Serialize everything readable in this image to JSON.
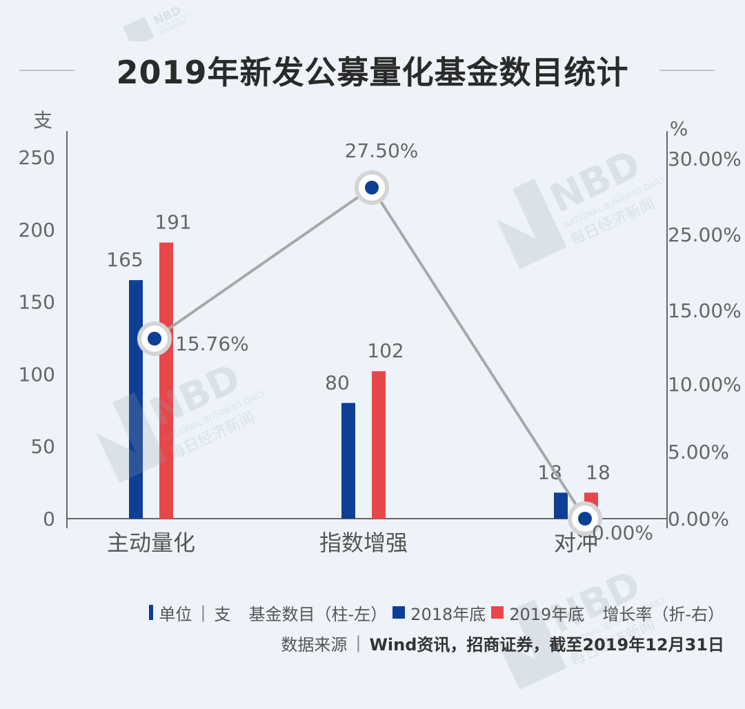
{
  "title": "2019年新发公募量化基金数目统计",
  "chart_data": {
    "type": "bar",
    "title": "2019年新发公募量化基金数目统计",
    "categories": [
      "主动量化",
      "指数增强",
      "对冲"
    ],
    "series": [
      {
        "name": "2018年底",
        "values": [
          165,
          80,
          18
        ],
        "color": "#0d3f94"
      },
      {
        "name": "2019年底",
        "values": [
          191,
          102,
          18
        ],
        "color": "#e8474a"
      }
    ],
    "line_series": {
      "name": "增长率",
      "values": [
        15.76,
        27.5,
        0.0
      ],
      "labels": [
        "15.76%",
        "27.50%",
        "0.00%"
      ],
      "color": "#a8a8a8",
      "axis": "right"
    },
    "left_axis": {
      "unit": "支",
      "ticks": [
        "0",
        "50",
        "100",
        "150",
        "200",
        "250"
      ],
      "ylim": [
        0,
        250
      ]
    },
    "right_axis": {
      "unit": "%",
      "ticks": [
        "0.00%",
        "5.00%",
        "10.00%",
        "15.00%",
        "25.00%",
        "30.00%"
      ],
      "ylim": [
        0,
        30
      ]
    }
  },
  "legend": {
    "unit_label": "单位",
    "unit_value": "支",
    "bar_label": "基金数目（柱-左）",
    "series_2018": "2018年底",
    "series_2019": "2019年底",
    "line_label": "增长率（折-右）"
  },
  "source": {
    "label": "数据来源",
    "value": "Wind资讯，招商证券，截至2019年12月31日"
  },
  "watermark": {
    "brand": "NBD",
    "sub": "NATIONAL BUSINESS DAILY",
    "cn": "每日经济新闻"
  }
}
